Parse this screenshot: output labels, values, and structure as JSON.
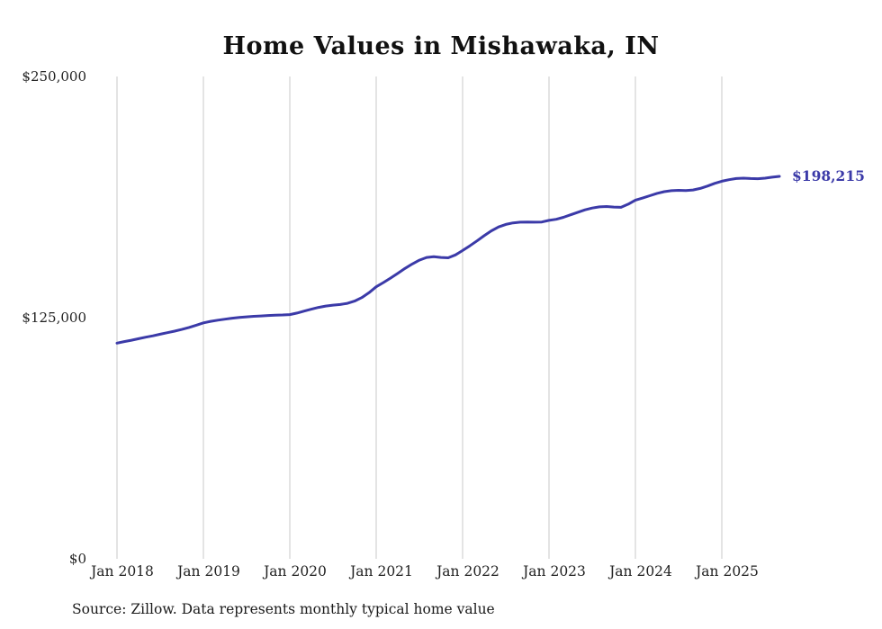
{
  "chart_data": {
    "type": "line",
    "title": "Home Values in Mishawaka, IN",
    "series_name": "Monthly typical home value",
    "x_start": "Jan 2018",
    "x_end": "Sep 2025",
    "x_tick_labels": [
      "Jan 2018",
      "Jan 2019",
      "Jan 2020",
      "Jan 2021",
      "Jan 2022",
      "Jan 2023",
      "Jan 2024",
      "Jan 2025"
    ],
    "y_tick_labels": [
      "$0",
      "$125,000",
      "$250,000"
    ],
    "y_ticks": [
      0,
      125000,
      250000
    ],
    "ylim": [
      0,
      250000
    ],
    "grid": "vertical-only",
    "legend": "none",
    "line_color": "#3b3aa8",
    "grid_color": "#c9c9c9",
    "end_label": "$198,215",
    "end_value": 198215,
    "values": [
      111800,
      112600,
      113300,
      114100,
      114900,
      115600,
      116400,
      117200,
      118000,
      118900,
      119900,
      121100,
      122300,
      123100,
      123700,
      124200,
      124700,
      125100,
      125400,
      125700,
      125900,
      126100,
      126300,
      126400,
      126600,
      127400,
      128400,
      129400,
      130300,
      131000,
      131500,
      131800,
      132400,
      133600,
      135400,
      137900,
      141000,
      143200,
      145500,
      148000,
      150500,
      152800,
      154800,
      156200,
      156600,
      156200,
      156000,
      157500,
      159800,
      162200,
      164800,
      167500,
      170000,
      172000,
      173300,
      174100,
      174500,
      174600,
      174500,
      174600,
      175400,
      176000,
      177000,
      178300,
      179600,
      180900,
      181800,
      182400,
      182600,
      182300,
      182200,
      183800,
      185900,
      187000,
      188200,
      189400,
      190300,
      190800,
      191000,
      190900,
      191200,
      192000,
      193200,
      194600,
      195700,
      196500,
      197100,
      197300,
      197100,
      197000,
      197300,
      197800,
      198215
    ]
  },
  "source_note": "Source: Zillow. Data represents monthly typical home value"
}
